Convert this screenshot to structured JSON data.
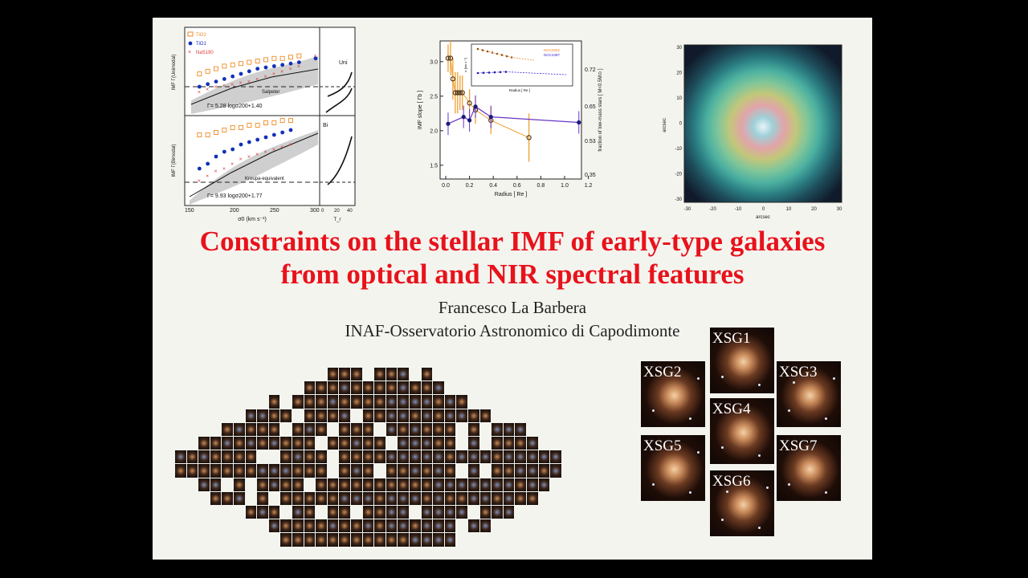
{
  "title": {
    "line1": "Constraints on the stellar IMF of early-type galaxies",
    "line2": "from optical and NIR spectral features"
  },
  "author": "Francesco La Barbera",
  "affiliation": "INAF-Osservatorio Astronomico di Capodimonte",
  "plot_left": {
    "legend": [
      "TiO2",
      "TiO1",
      "NaS190"
    ],
    "top_ylabel": "IMF Γ(Unimodal)",
    "bottom_ylabel": "IMF Γ(Bimodal)",
    "top_ref": "Salpeter",
    "bottom_ref": "Kroupa-equivalent",
    "top_fit": "Γ= 5.28 logσ200+1.40",
    "bottom_fit": "Γ= 9.93 logσ200+1.77",
    "top_side": "Uni",
    "bottom_side": "Bi",
    "xlabel": "σ0 (km s⁻¹)",
    "side_xlabel": "T_r",
    "xticks": [
      "150",
      "200",
      "250",
      "300"
    ],
    "side_xticks": [
      "0",
      "20",
      "40"
    ]
  },
  "plot_mid": {
    "ylabel": "IMF slope [ Γb ]",
    "ylabel_right": "fraction of low-mass stars [ M<0.5M⊙ ]",
    "xlabel": "Radius [ Re ]",
    "yticks": [
      "1.5",
      "2.0",
      "2.5",
      "3.0"
    ],
    "yticks_right": [
      "0.35",
      "0.53",
      "0.65",
      "0.72"
    ],
    "xticks": [
      "0.0",
      "0.2",
      "0.4",
      "0.6",
      "0.8",
      "1.0",
      "1.2"
    ],
    "inset_legend": [
      "NGC4552",
      "NGC4387"
    ],
    "inset_xlabel": "Radius [ Re ]",
    "inset_ylabel": "σ [km s⁻¹]"
  },
  "plot_map": {
    "xlabel": "arcsec",
    "ylabel": "arcsec",
    "ticks": [
      "-30",
      "-20",
      "-10",
      "0",
      "10",
      "20",
      "30"
    ]
  },
  "galaxies": [
    {
      "label": "XSG1"
    },
    {
      "label": "XSG2"
    },
    {
      "label": "XSG3"
    },
    {
      "label": "XSG4"
    },
    {
      "label": "XSG5"
    },
    {
      "label": "XSG6"
    },
    {
      "label": "XSG7"
    }
  ],
  "chart_data": [
    {
      "type": "scatter",
      "ylabel": "IMF Γ(Unimodal)",
      "xlabel": "σ0 (km s⁻¹)",
      "series": [
        {
          "name": "TiO1",
          "x": [
            160,
            170,
            180,
            190,
            200,
            210,
            220,
            230,
            240,
            250,
            260,
            270,
            280,
            300
          ],
          "values": [
            1.0,
            1.1,
            1.2,
            1.3,
            1.4,
            1.5,
            1.6,
            1.7,
            1.75,
            1.8,
            1.85,
            1.9,
            1.95,
            2.1
          ]
        },
        {
          "name": "TiO2",
          "x": [
            160,
            170,
            180,
            190,
            200,
            210,
            220,
            230,
            240,
            250,
            260,
            270,
            280
          ],
          "values": [
            1.5,
            1.6,
            1.7,
            1.8,
            1.85,
            1.9,
            1.95,
            2.0,
            2.05,
            2.1,
            2.1,
            2.15,
            2.2
          ]
        },
        {
          "name": "NaS190",
          "x": [
            160,
            170,
            180,
            190,
            200,
            210,
            220,
            230,
            240,
            250,
            260,
            270,
            280,
            300
          ],
          "values": [
            0.8,
            0.9,
            1.0,
            1.05,
            1.1,
            1.15,
            1.2,
            1.3,
            1.4,
            1.5,
            1.6,
            1.7,
            1.8,
            2.2
          ]
        }
      ]
    },
    {
      "type": "scatter",
      "ylabel": "IMF Γ(Bimodal)",
      "xlabel": "σ0 (km s⁻¹)",
      "series": [
        {
          "name": "TiO1",
          "x": [
            160,
            170,
            180,
            190,
            200,
            210,
            220,
            230,
            240,
            250,
            260,
            270
          ],
          "values": [
            1.4,
            1.6,
            1.9,
            2.1,
            2.2,
            2.4,
            2.5,
            2.6,
            2.7,
            2.8,
            2.9,
            3.0
          ]
        },
        {
          "name": "TiO2",
          "x": [
            160,
            170,
            180,
            190,
            200,
            210,
            220,
            230,
            240,
            250,
            260,
            270
          ],
          "values": [
            2.8,
            2.8,
            2.9,
            3.0,
            3.1,
            3.1,
            3.2,
            3.2,
            3.3,
            3.3,
            3.4,
            3.4
          ]
        },
        {
          "name": "NaS190",
          "x": [
            160,
            170,
            180,
            190,
            200,
            210,
            220,
            230,
            240,
            250,
            260,
            270
          ],
          "values": [
            0.9,
            1.1,
            1.3,
            1.4,
            1.6,
            1.8,
            1.9,
            2.0,
            2.1,
            2.2,
            2.3,
            2.4
          ]
        }
      ]
    },
    {
      "type": "scatter",
      "ylabel": "IMF slope [ Γb ]",
      "xlabel": "Radius [ Re ]",
      "ylim": [
        1.3,
        3.3
      ],
      "xlim": [
        -0.1,
        1.2
      ],
      "series": [
        {
          "x": [
            0.02,
            0.04,
            0.06,
            0.08,
            0.1,
            0.12,
            0.14,
            0.2,
            0.25,
            0.38,
            0.7
          ],
          "values": [
            3.05,
            3.05,
            2.75,
            2.55,
            2.55,
            2.55,
            2.55,
            2.4,
            2.3,
            2.15,
            1.9
          ]
        },
        {
          "x": [
            0.02,
            0.15,
            0.2,
            0.25,
            0.38,
            1.12
          ],
          "values": [
            2.1,
            2.2,
            2.15,
            2.35,
            2.2,
            2.12
          ]
        }
      ]
    }
  ]
}
